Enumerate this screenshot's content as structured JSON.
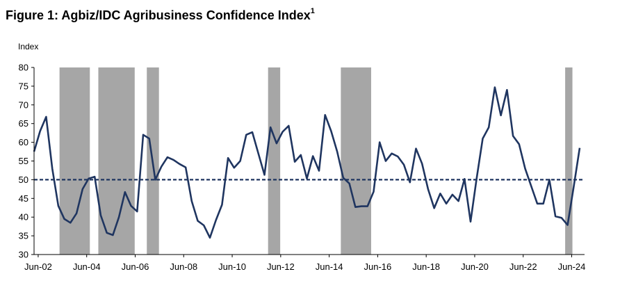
{
  "title": "Figure 1: Agbiz/IDC Agribusiness Confidence Index",
  "title_sup": "1",
  "chart_data": {
    "type": "line",
    "ylabel": "Index",
    "ylim": [
      30,
      80
    ],
    "yticks": [
      30,
      35,
      40,
      45,
      50,
      55,
      60,
      65,
      70,
      75,
      80
    ],
    "xlim": [
      2002.25,
      2024.95
    ],
    "xticks": [
      {
        "label": "Jun-02",
        "x": 2002.42
      },
      {
        "label": "Jun-04",
        "x": 2004.42
      },
      {
        "label": "Jun-06",
        "x": 2006.42
      },
      {
        "label": "Jun-08",
        "x": 2008.42
      },
      {
        "label": "Jun-10",
        "x": 2010.42
      },
      {
        "label": "Jun-12",
        "x": 2012.42
      },
      {
        "label": "Jun-14",
        "x": 2014.42
      },
      {
        "label": "Jun-16",
        "x": 2016.42
      },
      {
        "label": "Jun-18",
        "x": 2018.42
      },
      {
        "label": "Jun-20",
        "x": 2020.42
      },
      {
        "label": "Jun-22",
        "x": 2022.42
      },
      {
        "label": "Jun-24",
        "x": 2024.42
      }
    ],
    "reference_line": 50,
    "shaded_periods": [
      [
        2003.3,
        2004.55
      ],
      [
        2004.9,
        2006.4
      ],
      [
        2006.9,
        2007.4
      ],
      [
        2011.9,
        2012.4
      ],
      [
        2014.9,
        2016.15
      ],
      [
        2024.15,
        2024.45
      ]
    ],
    "series": [
      {
        "x": [
          2002.25,
          2002.5,
          2002.75,
          2003.0,
          2003.25,
          2003.5,
          2003.75,
          2004.0,
          2004.25,
          2004.5,
          2004.75,
          2005.0,
          2005.25,
          2005.5,
          2005.75,
          2006.0,
          2006.25,
          2006.5,
          2006.75,
          2007.0,
          2007.25,
          2007.5,
          2007.75,
          2008.0,
          2008.25,
          2008.5,
          2008.75,
          2009.0,
          2009.25,
          2009.5,
          2009.75,
          2010.0,
          2010.25,
          2010.5,
          2010.75,
          2011.0,
          2011.25,
          2011.5,
          2011.75,
          2012.0,
          2012.25,
          2012.5,
          2012.75,
          2013.0,
          2013.25,
          2013.5,
          2013.75,
          2014.0,
          2014.25,
          2014.5,
          2014.75,
          2015.0,
          2015.25,
          2015.5,
          2015.75,
          2016.0,
          2016.25,
          2016.5,
          2016.75,
          2017.0,
          2017.25,
          2017.5,
          2017.75,
          2018.0,
          2018.25,
          2018.5,
          2018.75,
          2019.0,
          2019.25,
          2019.5,
          2019.75,
          2020.0,
          2020.25,
          2020.5,
          2020.75,
          2021.0,
          2021.25,
          2021.5,
          2021.75,
          2022.0,
          2022.25,
          2022.5,
          2022.75,
          2023.0,
          2023.25,
          2023.5,
          2023.75,
          2024.0,
          2024.25,
          2024.5,
          2024.75
        ],
        "values": [
          57.5,
          63,
          66.8,
          53,
          43,
          39.5,
          38.5,
          41,
          47.5,
          50.3,
          50.8,
          40.5,
          35.8,
          35.2,
          40,
          46.7,
          43,
          41.5,
          62,
          61,
          50,
          53.5,
          56,
          55.3,
          54.2,
          53.3,
          44.3,
          39,
          37.8,
          34.5,
          39.2,
          43.3,
          55.8,
          53.2,
          55,
          62,
          62.7,
          57,
          51.3,
          64,
          59.7,
          62.8,
          64.4,
          54.8,
          56.6,
          50.3,
          56.3,
          52.4,
          67.3,
          63,
          57.5,
          50.5,
          49,
          42.7,
          42.9,
          42.9,
          46.8,
          60,
          55,
          57,
          56.2,
          54,
          49.3,
          58.3,
          54.3,
          47.4,
          42.4,
          46.3,
          43.6,
          46,
          44.3,
          50.2,
          38.8,
          50.3,
          61,
          64,
          74.7,
          67.2,
          74,
          61.7,
          59.5,
          53,
          48.3,
          43.6,
          43.6,
          50,
          40.2,
          39.8,
          37.9,
          48,
          58.5
        ],
        "color": "#1f3560"
      }
    ]
  }
}
